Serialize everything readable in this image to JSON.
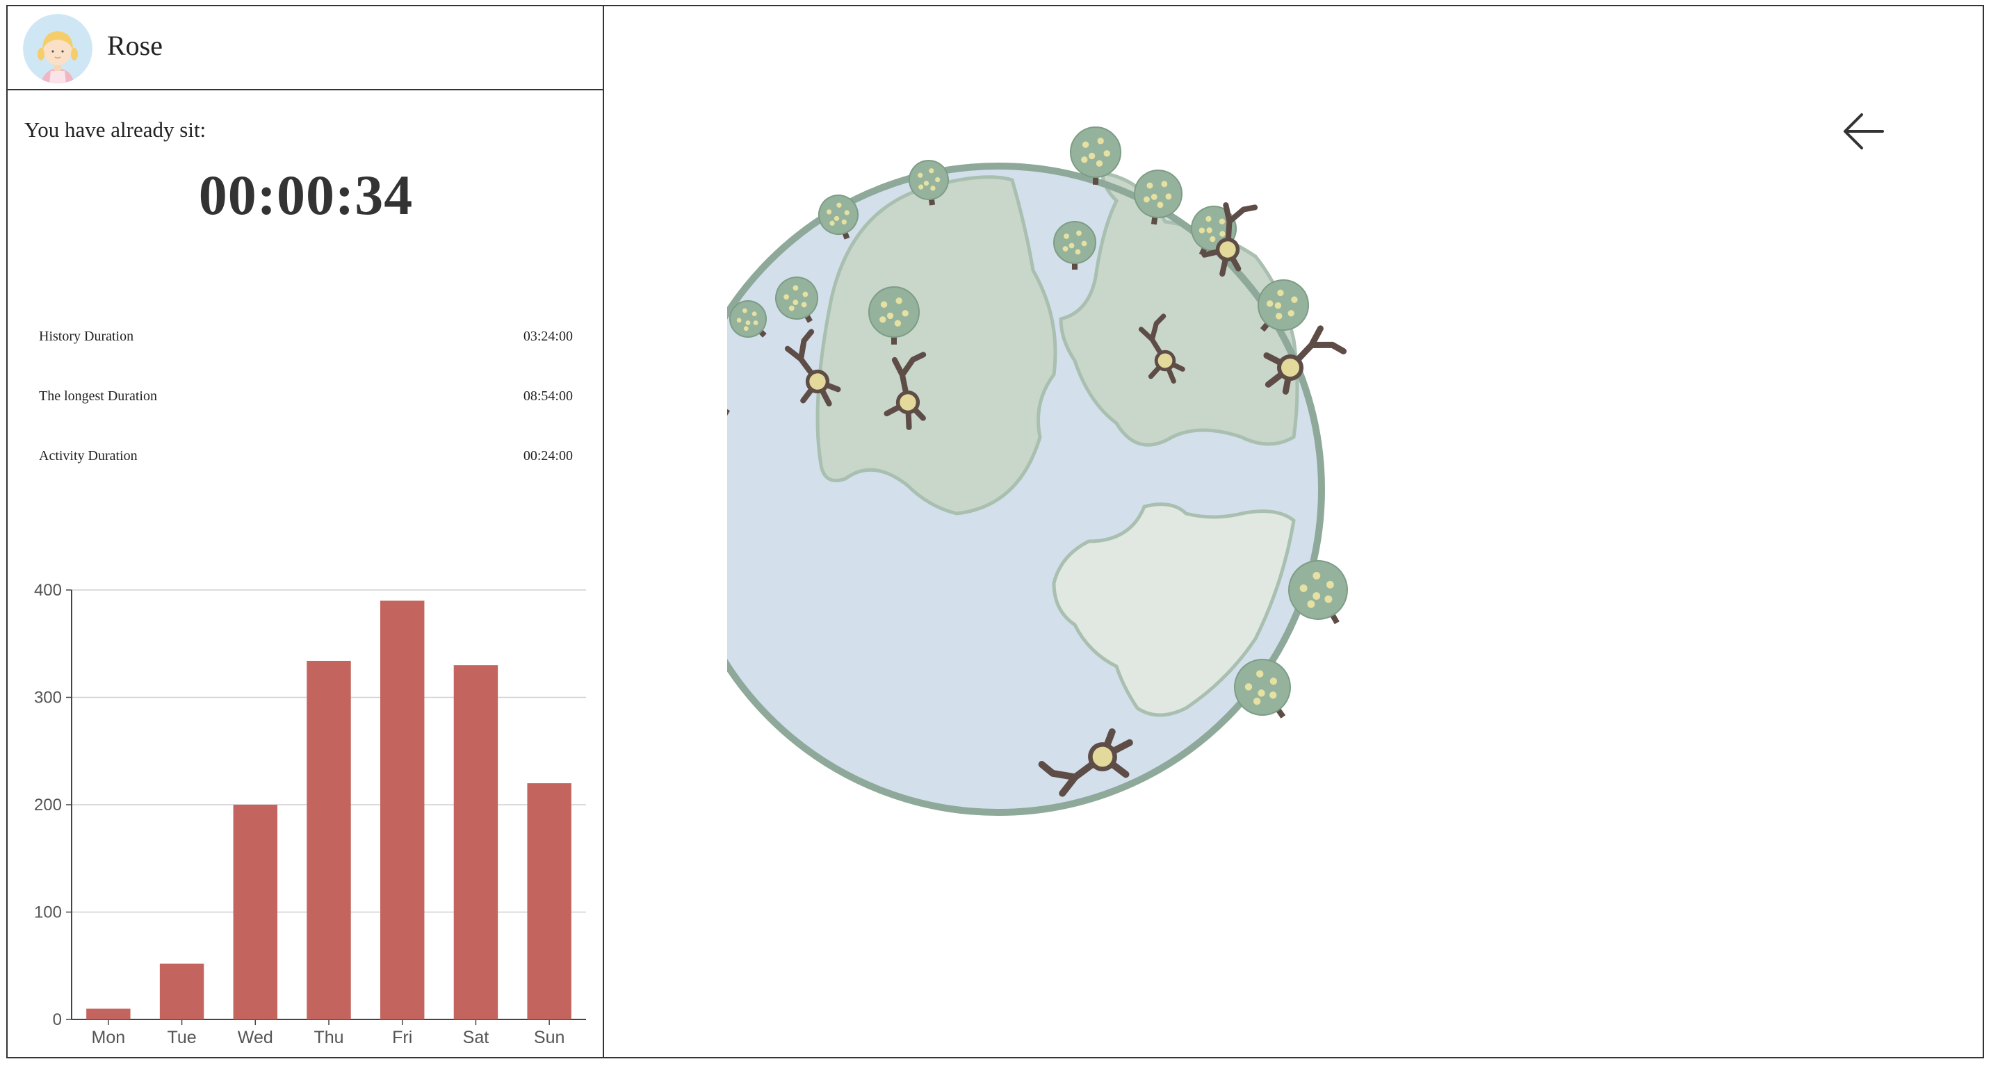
{
  "user": {
    "name": "Rose"
  },
  "session": {
    "label": "You have already sit:",
    "elapsed": "00:00:34"
  },
  "stats": [
    {
      "label": "History Duration",
      "value": "03:24:00"
    },
    {
      "label": "The longest Duration",
      "value": "08:54:00"
    },
    {
      "label": "Activity Duration",
      "value": "00:24:00"
    }
  ],
  "chart_data": {
    "type": "bar",
    "categories": [
      "Mon",
      "Tue",
      "Wed",
      "Thu",
      "Fri",
      "Sat",
      "Sun"
    ],
    "values": [
      10,
      52,
      200,
      334,
      390,
      330,
      220
    ],
    "yticks": [
      0,
      100,
      200,
      300,
      400
    ],
    "ylim": [
      0,
      400
    ],
    "grid": true,
    "bar_color": "#c4645e",
    "title": "",
    "xlabel": "",
    "ylabel": ""
  },
  "icons": {
    "back": "arrow-left-icon",
    "avatar": "girl-avatar-icon",
    "globe": "earth-with-trees-illustration"
  },
  "colors": {
    "ocean": "#d3e0ec",
    "land": "#c9d7cb",
    "land_light": "#e0e8e1",
    "rim": "#8ea99a",
    "tree": "#95b39c",
    "tree_dots": "#e6e0a2",
    "trunk": "#5e4c47"
  }
}
